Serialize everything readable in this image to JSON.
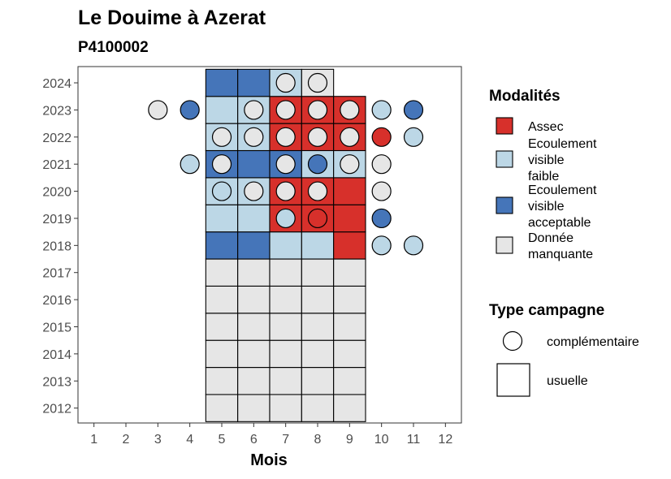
{
  "chart_data": {
    "type": "heatmap",
    "title": "Le Douime à Azerat",
    "subtitle": "P4100002",
    "xlabel": "Mois",
    "ylabel": "",
    "x_ticks": [
      1,
      2,
      3,
      4,
      5,
      6,
      7,
      8,
      9,
      10,
      11,
      12
    ],
    "y_ticks": [
      2012,
      2013,
      2014,
      2015,
      2016,
      2017,
      2018,
      2019,
      2020,
      2021,
      2022,
      2023,
      2024
    ],
    "xlim": [
      0.5,
      12.5
    ],
    "ylim": [
      2011.45,
      2024.6
    ],
    "legend_modalites": {
      "title": "Modalités",
      "items": [
        {
          "key": "assec",
          "label_lines": [
            "Assec"
          ],
          "color": "#d7302b"
        },
        {
          "key": "faible",
          "label_lines": [
            "Ecoulement",
            "visible",
            "faible"
          ],
          "color": "#bcd7e6"
        },
        {
          "key": "acceptable",
          "label_lines": [
            "Ecoulement",
            "visible",
            "acceptable"
          ],
          "color": "#4575b9"
        },
        {
          "key": "manquante",
          "label_lines": [
            "Donnée",
            "manquante"
          ],
          "color": "#e6e6e6"
        }
      ]
    },
    "legend_campagne": {
      "title": "Type campagne",
      "items": [
        {
          "key": "complementaire",
          "label": "complémentaire",
          "shape": "circle"
        },
        {
          "key": "usuelle",
          "label": "usuelle",
          "shape": "square"
        }
      ]
    },
    "usuelle": [
      {
        "year": 2012,
        "month": 5,
        "value": "manquante"
      },
      {
        "year": 2012,
        "month": 6,
        "value": "manquante"
      },
      {
        "year": 2012,
        "month": 7,
        "value": "manquante"
      },
      {
        "year": 2012,
        "month": 8,
        "value": "manquante"
      },
      {
        "year": 2012,
        "month": 9,
        "value": "manquante"
      },
      {
        "year": 2013,
        "month": 5,
        "value": "manquante"
      },
      {
        "year": 2013,
        "month": 6,
        "value": "manquante"
      },
      {
        "year": 2013,
        "month": 7,
        "value": "manquante"
      },
      {
        "year": 2013,
        "month": 8,
        "value": "manquante"
      },
      {
        "year": 2013,
        "month": 9,
        "value": "manquante"
      },
      {
        "year": 2014,
        "month": 5,
        "value": "manquante"
      },
      {
        "year": 2014,
        "month": 6,
        "value": "manquante"
      },
      {
        "year": 2014,
        "month": 7,
        "value": "manquante"
      },
      {
        "year": 2014,
        "month": 8,
        "value": "manquante"
      },
      {
        "year": 2014,
        "month": 9,
        "value": "manquante"
      },
      {
        "year": 2015,
        "month": 5,
        "value": "manquante"
      },
      {
        "year": 2015,
        "month": 6,
        "value": "manquante"
      },
      {
        "year": 2015,
        "month": 7,
        "value": "manquante"
      },
      {
        "year": 2015,
        "month": 8,
        "value": "manquante"
      },
      {
        "year": 2015,
        "month": 9,
        "value": "manquante"
      },
      {
        "year": 2016,
        "month": 5,
        "value": "manquante"
      },
      {
        "year": 2016,
        "month": 6,
        "value": "manquante"
      },
      {
        "year": 2016,
        "month": 7,
        "value": "manquante"
      },
      {
        "year": 2016,
        "month": 8,
        "value": "manquante"
      },
      {
        "year": 2016,
        "month": 9,
        "value": "manquante"
      },
      {
        "year": 2017,
        "month": 5,
        "value": "manquante"
      },
      {
        "year": 2017,
        "month": 6,
        "value": "manquante"
      },
      {
        "year": 2017,
        "month": 7,
        "value": "manquante"
      },
      {
        "year": 2017,
        "month": 8,
        "value": "manquante"
      },
      {
        "year": 2017,
        "month": 9,
        "value": "manquante"
      },
      {
        "year": 2018,
        "month": 5,
        "value": "acceptable"
      },
      {
        "year": 2018,
        "month": 6,
        "value": "acceptable"
      },
      {
        "year": 2018,
        "month": 7,
        "value": "faible"
      },
      {
        "year": 2018,
        "month": 8,
        "value": "faible"
      },
      {
        "year": 2018,
        "month": 9,
        "value": "assec"
      },
      {
        "year": 2019,
        "month": 5,
        "value": "faible"
      },
      {
        "year": 2019,
        "month": 6,
        "value": "faible"
      },
      {
        "year": 2019,
        "month": 7,
        "value": "assec"
      },
      {
        "year": 2019,
        "month": 8,
        "value": "assec"
      },
      {
        "year": 2019,
        "month": 9,
        "value": "assec"
      },
      {
        "year": 2020,
        "month": 5,
        "value": "faible"
      },
      {
        "year": 2020,
        "month": 6,
        "value": "faible"
      },
      {
        "year": 2020,
        "month": 7,
        "value": "assec"
      },
      {
        "year": 2020,
        "month": 8,
        "value": "assec"
      },
      {
        "year": 2020,
        "month": 9,
        "value": "assec"
      },
      {
        "year": 2021,
        "month": 5,
        "value": "acceptable"
      },
      {
        "year": 2021,
        "month": 6,
        "value": "acceptable"
      },
      {
        "year": 2021,
        "month": 7,
        "value": "acceptable"
      },
      {
        "year": 2021,
        "month": 8,
        "value": "faible"
      },
      {
        "year": 2021,
        "month": 9,
        "value": "faible"
      },
      {
        "year": 2022,
        "month": 5,
        "value": "faible"
      },
      {
        "year": 2022,
        "month": 6,
        "value": "faible"
      },
      {
        "year": 2022,
        "month": 7,
        "value": "assec"
      },
      {
        "year": 2022,
        "month": 8,
        "value": "assec"
      },
      {
        "year": 2022,
        "month": 9,
        "value": "assec"
      },
      {
        "year": 2023,
        "month": 5,
        "value": "faible"
      },
      {
        "year": 2023,
        "month": 6,
        "value": "faible"
      },
      {
        "year": 2023,
        "month": 7,
        "value": "assec"
      },
      {
        "year": 2023,
        "month": 8,
        "value": "assec"
      },
      {
        "year": 2023,
        "month": 9,
        "value": "assec"
      },
      {
        "year": 2024,
        "month": 5,
        "value": "acceptable"
      },
      {
        "year": 2024,
        "month": 6,
        "value": "acceptable"
      },
      {
        "year": 2024,
        "month": 7,
        "value": "faible"
      },
      {
        "year": 2024,
        "month": 8,
        "value": "manquante"
      }
    ],
    "complementaire": [
      {
        "year": 2024,
        "month": 7,
        "value": "manquante"
      },
      {
        "year": 2024,
        "month": 8,
        "value": "manquante"
      },
      {
        "year": 2023,
        "month": 3,
        "value": "manquante"
      },
      {
        "year": 2023,
        "month": 4,
        "value": "acceptable"
      },
      {
        "year": 2023,
        "month": 6,
        "value": "manquante"
      },
      {
        "year": 2023,
        "month": 7,
        "value": "manquante"
      },
      {
        "year": 2023,
        "month": 8,
        "value": "manquante"
      },
      {
        "year": 2023,
        "month": 9,
        "value": "manquante"
      },
      {
        "year": 2023,
        "month": 10,
        "value": "faible"
      },
      {
        "year": 2023,
        "month": 11,
        "value": "acceptable"
      },
      {
        "year": 2022,
        "month": 5,
        "value": "manquante"
      },
      {
        "year": 2022,
        "month": 6,
        "value": "manquante"
      },
      {
        "year": 2022,
        "month": 7,
        "value": "manquante"
      },
      {
        "year": 2022,
        "month": 8,
        "value": "manquante"
      },
      {
        "year": 2022,
        "month": 9,
        "value": "manquante"
      },
      {
        "year": 2022,
        "month": 10,
        "value": "assec"
      },
      {
        "year": 2022,
        "month": 11,
        "value": "faible"
      },
      {
        "year": 2021,
        "month": 4,
        "value": "faible"
      },
      {
        "year": 2021,
        "month": 5,
        "value": "manquante"
      },
      {
        "year": 2021,
        "month": 7,
        "value": "manquante"
      },
      {
        "year": 2021,
        "month": 8,
        "value": "acceptable"
      },
      {
        "year": 2021,
        "month": 9,
        "value": "manquante"
      },
      {
        "year": 2021,
        "month": 10,
        "value": "manquante"
      },
      {
        "year": 2020,
        "month": 5,
        "value": "faible"
      },
      {
        "year": 2020,
        "month": 6,
        "value": "manquante"
      },
      {
        "year": 2020,
        "month": 7,
        "value": "manquante"
      },
      {
        "year": 2020,
        "month": 8,
        "value": "manquante"
      },
      {
        "year": 2020,
        "month": 10,
        "value": "manquante"
      },
      {
        "year": 2019,
        "month": 7,
        "value": "faible"
      },
      {
        "year": 2019,
        "month": 8,
        "value": "assec"
      },
      {
        "year": 2019,
        "month": 10,
        "value": "acceptable"
      },
      {
        "year": 2018,
        "month": 10,
        "value": "faible"
      },
      {
        "year": 2018,
        "month": 11,
        "value": "faible"
      }
    ]
  }
}
